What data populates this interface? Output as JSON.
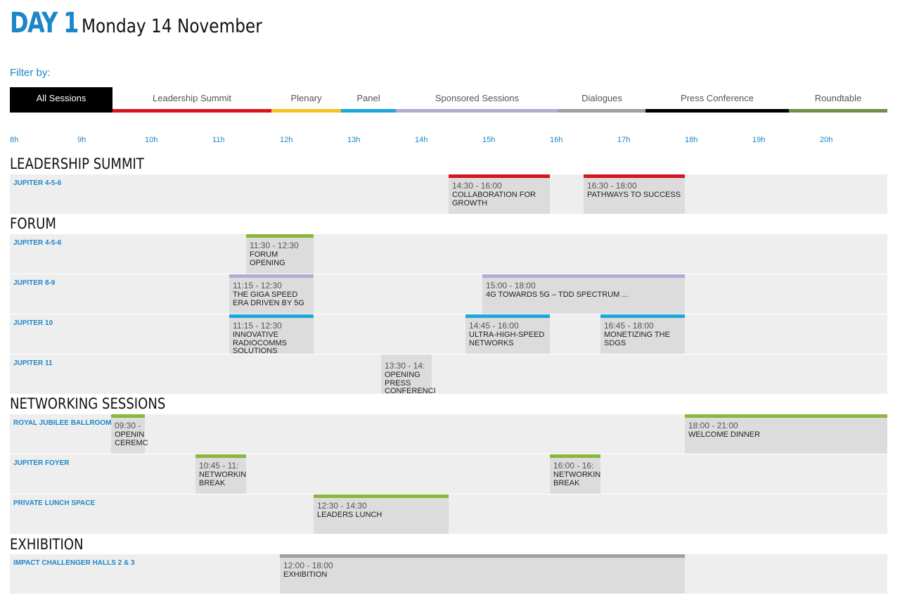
{
  "header": {
    "day_label": "DAY 1",
    "date_label": "Monday 14 November"
  },
  "filter": {
    "label": "Filter by:",
    "tabs": [
      {
        "label": "All Sessions",
        "color": "#000000",
        "active": true
      },
      {
        "label": "Leadership Summit",
        "color": "#d7141f",
        "active": false
      },
      {
        "label": "Plenary",
        "color": "#f3c324",
        "active": false
      },
      {
        "label": "Panel",
        "color": "#1ea7da",
        "active": false
      },
      {
        "label": "Sponsored Sessions",
        "color": "#b6a9d4",
        "active": false
      },
      {
        "label": "Dialogues",
        "color": "#a0a0a0",
        "active": false
      },
      {
        "label": "Press Conference",
        "color": "#000000",
        "active": false
      },
      {
        "label": "Roundtable",
        "color": "#6e8f47",
        "active": false
      }
    ]
  },
  "timeline": {
    "hours": [
      "8h",
      "9h",
      "10h",
      "11h",
      "12h",
      "13h",
      "14h",
      "15h",
      "16h",
      "17h",
      "18h",
      "19h",
      "20h"
    ]
  },
  "sections": [
    {
      "title": "LEADERSHIP SUMMIT",
      "rows": [
        {
          "room": "JUPITER 4-5-6",
          "sessions": [
            {
              "time": "14:30 - 16:00",
              "name": "COLLABORATION FOR\nGROWTH",
              "color": "#d7141f"
            },
            {
              "time": "16:30 - 18:00",
              "name": "PATHWAYS TO SUCCESS",
              "color": "#d7141f"
            }
          ]
        }
      ]
    },
    {
      "title": "FORUM",
      "rows": [
        {
          "room": "JUPITER 4-5-6",
          "sessions": [
            {
              "time": "11:30 - 12:30",
              "name": "FORUM\nOPENING",
              "color": "#8ab73c"
            }
          ]
        },
        {
          "room": "JUPITER 8-9",
          "sessions": [
            {
              "time": "11:15 - 12:30",
              "name": "THE GIGA SPEED\nERA DRIVEN BY 5G",
              "color": "#b6a9d4"
            },
            {
              "time": "15:00 - 18:00",
              "name": "4G TOWARDS 5G – TDD SPECTRUM ...",
              "color": "#b6a9d4"
            }
          ]
        },
        {
          "room": "JUPITER 10",
          "sessions": [
            {
              "time": "11:15 - 12:30",
              "name": "INNOVATIVE\nRADIOCOMMS\nSOLUTIONS",
              "color": "#1ea7da"
            },
            {
              "time": "14:45 - 16:00",
              "name": "ULTRA-HIGH-SPEED\nNETWORKS",
              "color": "#1ea7da"
            },
            {
              "time": "16:45 - 18:00",
              "name": "MONETIZING THE\nSDGS",
              "color": "#1ea7da"
            }
          ]
        },
        {
          "room": "JUPITER 11",
          "sessions": [
            {
              "time": "13:30 - 14:",
              "name": "OPENING\nPRESS\nCONFERENCI",
              "color": "#dcdcdc"
            }
          ]
        }
      ]
    },
    {
      "title": "NETWORKING SESSIONS",
      "rows": [
        {
          "room": "ROYAL JUBILEE BALLROOM",
          "sessions": [
            {
              "time": "09:30 -",
              "name": "OPENIN\nCEREMC",
              "color": "#8ab73c"
            },
            {
              "time": "18:00 - 21:00",
              "name": "WELCOME DINNER",
              "color": "#8ab73c"
            }
          ]
        },
        {
          "room": "JUPITER FOYER",
          "sessions": [
            {
              "time": "10:45 - 11:",
              "name": "NETWORKIN\nBREAK",
              "color": "#8ab73c"
            },
            {
              "time": "16:00 - 16:",
              "name": "NETWORKIN\nBREAK",
              "color": "#8ab73c"
            }
          ]
        },
        {
          "room": "PRIVATE LUNCH SPACE",
          "sessions": [
            {
              "time": "12:30 - 14:30",
              "name": "LEADERS LUNCH",
              "color": "#8ab73c"
            }
          ]
        }
      ]
    },
    {
      "title": "EXHIBITION",
      "rows": [
        {
          "room": "IMPACT CHALLENGER HALLS 2 & 3",
          "sessions": [
            {
              "time": "12:00 - 18:00",
              "name": "EXHIBITION",
              "color": "#a0a0a0"
            }
          ]
        }
      ]
    }
  ]
}
